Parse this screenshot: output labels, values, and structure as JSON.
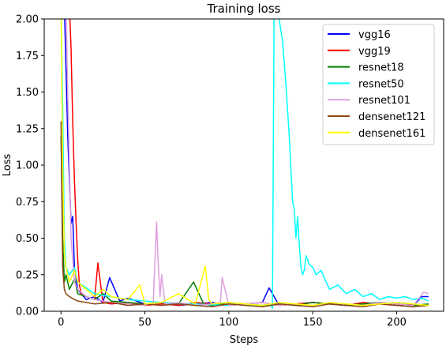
{
  "chart_data": {
    "type": "line",
    "title": "Training loss",
    "xlabel": "Steps",
    "ylabel": "Loss",
    "xlim": [
      -10,
      228
    ],
    "ylim": [
      0,
      2
    ],
    "xticks": [
      0,
      50,
      100,
      150,
      200
    ],
    "xtick_labels": [
      "0",
      "50",
      "100",
      "150",
      "200"
    ],
    "yticks": [
      0,
      0.25,
      0.5,
      0.75,
      1.0,
      1.25,
      1.5,
      1.75,
      2.0
    ],
    "ytick_labels": [
      "0.00",
      "0.25",
      "0.50",
      "0.75",
      "1.00",
      "1.25",
      "1.50",
      "1.75",
      "2.00"
    ],
    "grid": false,
    "legend_position": "top-right",
    "series": [
      {
        "name": "vgg16",
        "color": "#0000ff",
        "x": [
          0,
          2,
          4,
          6,
          7,
          8,
          10,
          12,
          15,
          20,
          25,
          29,
          35,
          40,
          50,
          60,
          70,
          80,
          90,
          100,
          110,
          120,
          124,
          130,
          140,
          150,
          160,
          170,
          180,
          190,
          200,
          210,
          215,
          219
        ],
        "y": [
          2.1,
          2.1,
          1.2,
          0.6,
          0.65,
          0.3,
          0.15,
          0.12,
          0.08,
          0.1,
          0.06,
          0.23,
          0.07,
          0.09,
          0.05,
          0.06,
          0.04,
          0.05,
          0.06,
          0.04,
          0.05,
          0.06,
          0.16,
          0.04,
          0.05,
          0.06,
          0.05,
          0.04,
          0.05,
          0.06,
          0.05,
          0.04,
          0.1,
          0.1
        ]
      },
      {
        "name": "vgg19",
        "color": "#ff0000",
        "x": [
          0,
          3,
          5,
          6,
          7,
          8,
          9,
          10,
          11,
          12,
          15,
          20,
          22,
          25,
          30,
          40,
          50,
          60,
          70,
          80,
          90,
          100,
          110,
          120,
          130,
          140,
          150,
          160,
          170,
          180,
          190,
          200,
          210,
          219
        ],
        "y": [
          2.1,
          2.1,
          2.1,
          1.8,
          1.3,
          0.9,
          0.6,
          0.35,
          0.18,
          0.12,
          0.1,
          0.08,
          0.33,
          0.06,
          0.05,
          0.06,
          0.04,
          0.05,
          0.04,
          0.06,
          0.05,
          0.04,
          0.05,
          0.06,
          0.04,
          0.05,
          0.06,
          0.05,
          0.04,
          0.06,
          0.05,
          0.04,
          0.05,
          0.04
        ]
      },
      {
        "name": "resnet18",
        "color": "#008000",
        "x": [
          0,
          1,
          2,
          3,
          5,
          8,
          10,
          15,
          20,
          25,
          30,
          40,
          50,
          60,
          70,
          79,
          85,
          90,
          100,
          110,
          120,
          130,
          140,
          150,
          160,
          170,
          180,
          190,
          200,
          210,
          219
        ],
        "y": [
          1.2,
          0.5,
          0.2,
          0.25,
          0.15,
          0.22,
          0.12,
          0.1,
          0.08,
          0.12,
          0.07,
          0.06,
          0.05,
          0.06,
          0.05,
          0.2,
          0.05,
          0.04,
          0.06,
          0.05,
          0.04,
          0.05,
          0.04,
          0.06,
          0.05,
          0.04,
          0.05,
          0.06,
          0.05,
          0.04,
          0.05
        ]
      },
      {
        "name": "resnet50",
        "color": "#00ffff",
        "x": [
          0,
          1,
          2,
          3,
          5,
          8,
          10,
          20,
          40,
          60,
          80,
          100,
          110,
          120,
          125,
          126,
          127,
          128,
          129,
          130,
          132,
          134,
          136,
          138,
          139,
          140,
          141,
          142,
          143,
          144,
          145,
          146,
          148,
          150,
          152,
          155,
          158,
          160,
          165,
          170,
          175,
          180,
          185,
          190,
          195,
          200,
          205,
          210,
          215,
          219
        ],
        "y": [
          2.1,
          1.4,
          0.5,
          0.3,
          0.25,
          0.3,
          0.2,
          0.12,
          0.08,
          0.06,
          0.05,
          0.04,
          0.05,
          0.04,
          0.05,
          0.02,
          2.1,
          2.1,
          2.1,
          2.0,
          1.85,
          1.55,
          1.2,
          0.75,
          0.7,
          0.5,
          0.65,
          0.45,
          0.3,
          0.25,
          0.28,
          0.38,
          0.32,
          0.3,
          0.25,
          0.28,
          0.2,
          0.15,
          0.18,
          0.12,
          0.15,
          0.1,
          0.12,
          0.08,
          0.1,
          0.09,
          0.1,
          0.08,
          0.09,
          0.07
        ]
      },
      {
        "name": "resnet101",
        "color": "#dda0dd",
        "x": [
          0,
          2,
          3,
          4,
          6,
          8,
          10,
          15,
          20,
          30,
          40,
          50,
          55,
          56,
          57,
          58,
          59,
          60,
          62,
          70,
          80,
          90,
          95,
          96,
          100,
          110,
          120,
          130,
          140,
          150,
          160,
          170,
          180,
          190,
          200,
          210,
          216,
          219
        ],
        "y": [
          2.1,
          2.1,
          2.1,
          1.5,
          0.5,
          0.2,
          0.15,
          0.1,
          0.08,
          0.06,
          0.05,
          0.04,
          0.06,
          0.35,
          0.61,
          0.3,
          0.1,
          0.25,
          0.05,
          0.06,
          0.04,
          0.05,
          0.06,
          0.23,
          0.04,
          0.05,
          0.06,
          0.04,
          0.05,
          0.04,
          0.06,
          0.05,
          0.04,
          0.06,
          0.05,
          0.04,
          0.13,
          0.12
        ]
      },
      {
        "name": "densenet121",
        "color": "#8b4513",
        "x": [
          0,
          1,
          2,
          3,
          5,
          8,
          10,
          15,
          20,
          30,
          40,
          50,
          60,
          70,
          80,
          90,
          100,
          110,
          120,
          130,
          140,
          150,
          160,
          170,
          180,
          190,
          200,
          210,
          219
        ],
        "y": [
          1.3,
          0.3,
          0.15,
          0.12,
          0.1,
          0.08,
          0.07,
          0.06,
          0.05,
          0.06,
          0.04,
          0.05,
          0.04,
          0.05,
          0.04,
          0.03,
          0.05,
          0.04,
          0.03,
          0.05,
          0.04,
          0.03,
          0.05,
          0.04,
          0.03,
          0.05,
          0.04,
          0.03,
          0.04
        ]
      },
      {
        "name": "densenet161",
        "color": "#ffff00",
        "x": [
          0,
          1,
          2,
          3,
          5,
          8,
          10,
          15,
          18,
          20,
          25,
          30,
          40,
          47,
          50,
          60,
          70,
          80,
          86,
          88,
          90,
          100,
          110,
          120,
          130,
          140,
          150,
          160,
          170,
          180,
          190,
          200,
          210,
          219
        ],
        "y": [
          2.1,
          1.0,
          0.4,
          0.3,
          0.2,
          0.28,
          0.2,
          0.15,
          0.12,
          0.1,
          0.15,
          0.1,
          0.08,
          0.18,
          0.05,
          0.06,
          0.12,
          0.05,
          0.31,
          0.08,
          0.05,
          0.06,
          0.05,
          0.04,
          0.06,
          0.05,
          0.04,
          0.06,
          0.05,
          0.04,
          0.05,
          0.06,
          0.05,
          0.04
        ]
      }
    ]
  }
}
